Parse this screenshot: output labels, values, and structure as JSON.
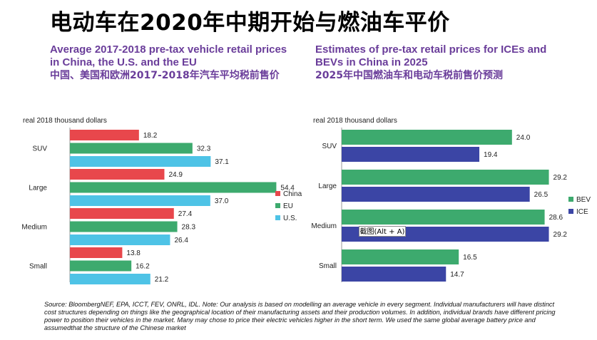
{
  "title": "电动车在2020年中期开始与燃油车平价",
  "left_chart": {
    "subtitle_line1": "Average 2017-2018 pre-tax vehicle retail prices",
    "subtitle_line2": "in China, the U.S. and the EU",
    "subtitle_cn": "中国、美国和欧洲2017-2018年汽车平均税前售价"
  },
  "right_chart": {
    "subtitle_line1": "Estimates of pre-tax retail prices for ICEs and",
    "subtitle_line2": "BEVs in China in 2025",
    "subtitle_cn": "2025年中国燃油车和电动车税前售价预测"
  },
  "source": "Source: BloombergNEF, EPA, ICCT, FEV, ONRL, IDL. Note: Our analysis is based on modelling an average vehicle in every segment. Individual manufacturers will have distinct cost structures depending on things like the geographical location of their manufacturing assets and their production volumes. In addition, individual brands have different pricing power to position their vehicles in the market. Many may chose to price their electric vehicles higher in the short term. We used the same global average battery price and assumedthat the structure of the Chinese market",
  "tooltip": "截图(Alt + A)",
  "chart_data": [
    {
      "type": "bar",
      "orientation": "horizontal",
      "ylabel": "real 2018 thousand dollars",
      "categories": [
        "SUV",
        "Large",
        "Medium",
        "Small"
      ],
      "series": [
        {
          "name": "China",
          "values": [
            18.2,
            24.9,
            27.4,
            13.8
          ],
          "color": "#e8474c"
        },
        {
          "name": "EU",
          "values": [
            32.3,
            54.4,
            28.3,
            16.2
          ],
          "color": "#3daa6e"
        },
        {
          "name": "U.S.",
          "values": [
            37.1,
            37.0,
            26.4,
            21.2
          ],
          "color": "#4ec3e6"
        }
      ],
      "xlim": [
        0,
        60
      ],
      "legend": "right"
    },
    {
      "type": "bar",
      "orientation": "horizontal",
      "ylabel": "real 2018 thousand dollars",
      "categories": [
        "SUV",
        "Large",
        "Medium",
        "Small"
      ],
      "series": [
        {
          "name": "BEV",
          "values": [
            24.0,
            29.2,
            28.6,
            16.5
          ],
          "color": "#3daa6e"
        },
        {
          "name": "ICE",
          "values": [
            19.4,
            26.5,
            29.2,
            14.7
          ],
          "color": "#3b45a5"
        }
      ],
      "xlim": [
        0,
        30
      ],
      "grid": false,
      "legend": "right"
    }
  ]
}
